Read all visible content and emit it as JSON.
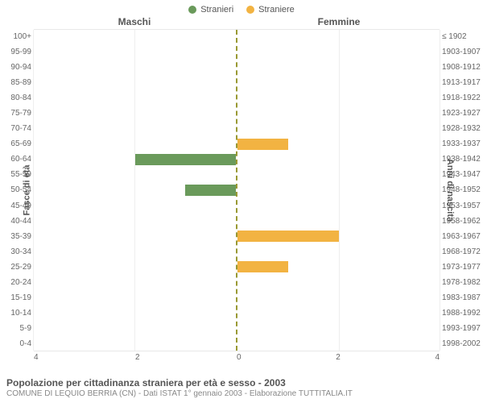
{
  "legend": {
    "male": {
      "label": "Stranieri",
      "color": "#6a9a5b"
    },
    "female": {
      "label": "Straniere",
      "color": "#f2b342"
    }
  },
  "headers": {
    "male": "Maschi",
    "female": "Femmine"
  },
  "axis_labels": {
    "left": "Fasce di età",
    "right": "Anni di nascita"
  },
  "chart": {
    "type": "bidirectional-bar",
    "x_max": 4,
    "x_ticks": [
      4,
      2,
      0,
      2,
      4
    ],
    "grid_color": "#eeeeee",
    "divider_color": "#999933",
    "bar_color_male": "#6a9a5b",
    "bar_color_female": "#f2b342",
    "background_color": "#ffffff",
    "font_size_ticks": 10,
    "rows": [
      {
        "age": "100+",
        "years": "≤ 1902",
        "male": 0,
        "female": 0
      },
      {
        "age": "95-99",
        "years": "1903-1907",
        "male": 0,
        "female": 0
      },
      {
        "age": "90-94",
        "years": "1908-1912",
        "male": 0,
        "female": 0
      },
      {
        "age": "85-89",
        "years": "1913-1917",
        "male": 0,
        "female": 0
      },
      {
        "age": "80-84",
        "years": "1918-1922",
        "male": 0,
        "female": 0
      },
      {
        "age": "75-79",
        "years": "1923-1927",
        "male": 0,
        "female": 0
      },
      {
        "age": "70-74",
        "years": "1928-1932",
        "male": 0,
        "female": 0
      },
      {
        "age": "65-69",
        "years": "1933-1937",
        "male": 0,
        "female": 1
      },
      {
        "age": "60-64",
        "years": "1938-1942",
        "male": 2,
        "female": 0
      },
      {
        "age": "55-59",
        "years": "1943-1947",
        "male": 0,
        "female": 0
      },
      {
        "age": "50-54",
        "years": "1948-1952",
        "male": 1,
        "female": 0
      },
      {
        "age": "45-49",
        "years": "1953-1957",
        "male": 0,
        "female": 0
      },
      {
        "age": "40-44",
        "years": "1958-1962",
        "male": 0,
        "female": 0
      },
      {
        "age": "35-39",
        "years": "1963-1967",
        "male": 0,
        "female": 2
      },
      {
        "age": "30-34",
        "years": "1968-1972",
        "male": 0,
        "female": 0
      },
      {
        "age": "25-29",
        "years": "1973-1977",
        "male": 0,
        "female": 1
      },
      {
        "age": "20-24",
        "years": "1978-1982",
        "male": 0,
        "female": 0
      },
      {
        "age": "15-19",
        "years": "1983-1987",
        "male": 0,
        "female": 0
      },
      {
        "age": "10-14",
        "years": "1988-1992",
        "male": 0,
        "female": 0
      },
      {
        "age": "5-9",
        "years": "1993-1997",
        "male": 0,
        "female": 0
      },
      {
        "age": "0-4",
        "years": "1998-2002",
        "male": 0,
        "female": 0
      }
    ]
  },
  "footer": {
    "title": "Popolazione per cittadinanza straniera per età e sesso - 2003",
    "subtitle": "COMUNE DI LEQUIO BERRIA (CN) - Dati ISTAT 1° gennaio 2003 - Elaborazione TUTTITALIA.IT"
  }
}
